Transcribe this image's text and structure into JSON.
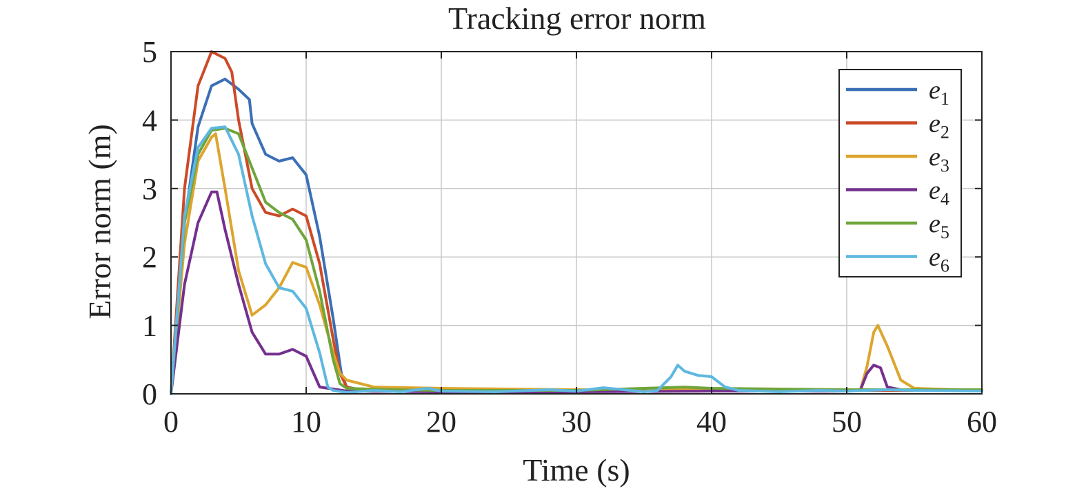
{
  "chart_data": {
    "type": "line",
    "title": "Tracking error norm",
    "xlabel": "Time (s)",
    "ylabel": "Error norm (m)",
    "xlim": [
      0,
      60
    ],
    "ylim": [
      0,
      5
    ],
    "xticks": [
      0,
      10,
      20,
      30,
      40,
      50,
      60
    ],
    "yticks": [
      0,
      1,
      2,
      3,
      4,
      5
    ],
    "grid": true,
    "legend_position": "top-right",
    "series": [
      {
        "name": "e1",
        "base": "e",
        "sub": "1",
        "color": "#3b6fb6",
        "points": [
          [
            0,
            0
          ],
          [
            1,
            2.5
          ],
          [
            2,
            3.9
          ],
          [
            3,
            4.5
          ],
          [
            4,
            4.6
          ],
          [
            5,
            4.45
          ],
          [
            5.8,
            4.3
          ],
          [
            6,
            3.95
          ],
          [
            7,
            3.5
          ],
          [
            8,
            3.4
          ],
          [
            9,
            3.45
          ],
          [
            10,
            3.2
          ],
          [
            11,
            2.3
          ],
          [
            12,
            1.1
          ],
          [
            12.6,
            0.3
          ],
          [
            13,
            0.1
          ],
          [
            14,
            0.06
          ],
          [
            20,
            0.05
          ],
          [
            30,
            0.05
          ],
          [
            40,
            0.06
          ],
          [
            50,
            0.05
          ],
          [
            60,
            0.05
          ]
        ]
      },
      {
        "name": "e2",
        "base": "e",
        "sub": "2",
        "color": "#cc4a28",
        "points": [
          [
            0,
            0
          ],
          [
            1,
            3.0
          ],
          [
            2,
            4.5
          ],
          [
            3,
            5.0
          ],
          [
            4,
            4.9
          ],
          [
            4.5,
            4.7
          ],
          [
            5,
            4.0
          ],
          [
            6,
            3.0
          ],
          [
            7,
            2.65
          ],
          [
            8,
            2.6
          ],
          [
            9,
            2.7
          ],
          [
            10,
            2.6
          ],
          [
            11,
            1.9
          ],
          [
            12,
            0.8
          ],
          [
            12.5,
            0.3
          ],
          [
            13,
            0.1
          ],
          [
            14,
            0.05
          ],
          [
            20,
            0.05
          ],
          [
            30,
            0.05
          ],
          [
            40,
            0.05
          ],
          [
            50,
            0.05
          ],
          [
            60,
            0.05
          ]
        ]
      },
      {
        "name": "e3",
        "base": "e",
        "sub": "3",
        "color": "#dda52e",
        "points": [
          [
            0,
            0
          ],
          [
            1,
            2.2
          ],
          [
            2,
            3.4
          ],
          [
            3,
            3.75
          ],
          [
            3.3,
            3.8
          ],
          [
            4,
            3.0
          ],
          [
            5,
            1.8
          ],
          [
            6,
            1.15
          ],
          [
            7,
            1.3
          ],
          [
            8,
            1.55
          ],
          [
            9,
            1.92
          ],
          [
            10,
            1.85
          ],
          [
            11,
            1.3
          ],
          [
            12,
            0.6
          ],
          [
            12.5,
            0.3
          ],
          [
            13,
            0.2
          ],
          [
            14,
            0.15
          ],
          [
            15,
            0.1
          ],
          [
            20,
            0.08
          ],
          [
            30,
            0.06
          ],
          [
            40,
            0.06
          ],
          [
            50,
            0.05
          ],
          [
            51,
            0.05
          ],
          [
            51.5,
            0.4
          ],
          [
            52,
            0.9
          ],
          [
            52.3,
            1.0
          ],
          [
            53,
            0.7
          ],
          [
            54,
            0.2
          ],
          [
            55,
            0.08
          ],
          [
            60,
            0.05
          ]
        ]
      },
      {
        "name": "e4",
        "base": "e",
        "sub": "4",
        "color": "#74308f",
        "points": [
          [
            0,
            0
          ],
          [
            1,
            1.6
          ],
          [
            2,
            2.5
          ],
          [
            3,
            2.95
          ],
          [
            3.4,
            2.95
          ],
          [
            4,
            2.4
          ],
          [
            5,
            1.6
          ],
          [
            6,
            0.9
          ],
          [
            7,
            0.58
          ],
          [
            8,
            0.58
          ],
          [
            9,
            0.65
          ],
          [
            10,
            0.55
          ],
          [
            11,
            0.1
          ],
          [
            12,
            0.07
          ],
          [
            13,
            0.04
          ],
          [
            20,
            0.03
          ],
          [
            30,
            0.03
          ],
          [
            40,
            0.04
          ],
          [
            50,
            0.04
          ],
          [
            51,
            0.05
          ],
          [
            51.5,
            0.3
          ],
          [
            52,
            0.42
          ],
          [
            52.5,
            0.38
          ],
          [
            53,
            0.1
          ],
          [
            54,
            0.06
          ],
          [
            60,
            0.05
          ]
        ]
      },
      {
        "name": "e5",
        "base": "e",
        "sub": "5",
        "color": "#6fa53a",
        "points": [
          [
            0,
            0
          ],
          [
            1,
            2.5
          ],
          [
            2,
            3.5
          ],
          [
            3,
            3.85
          ],
          [
            4,
            3.88
          ],
          [
            5,
            3.8
          ],
          [
            6,
            3.3
          ],
          [
            7,
            2.8
          ],
          [
            8,
            2.65
          ],
          [
            9,
            2.55
          ],
          [
            10,
            2.25
          ],
          [
            11,
            1.5
          ],
          [
            12,
            0.5
          ],
          [
            12.5,
            0.15
          ],
          [
            13,
            0.08
          ],
          [
            16,
            0.06
          ],
          [
            20,
            0.05
          ],
          [
            30,
            0.05
          ],
          [
            38,
            0.1
          ],
          [
            40,
            0.08
          ],
          [
            50,
            0.06
          ],
          [
            60,
            0.06
          ]
        ]
      },
      {
        "name": "e6",
        "base": "e",
        "sub": "6",
        "color": "#5eb8e0",
        "points": [
          [
            0,
            0
          ],
          [
            1,
            2.6
          ],
          [
            2,
            3.6
          ],
          [
            3,
            3.88
          ],
          [
            4,
            3.9
          ],
          [
            5,
            3.5
          ],
          [
            6,
            2.6
          ],
          [
            7,
            1.9
          ],
          [
            8,
            1.55
          ],
          [
            9,
            1.5
          ],
          [
            10,
            1.25
          ],
          [
            11,
            0.6
          ],
          [
            11.6,
            0.1
          ],
          [
            12,
            0.05
          ],
          [
            13,
            0.02
          ],
          [
            15,
            0.05
          ],
          [
            17,
            0.03
          ],
          [
            19,
            0.08
          ],
          [
            20,
            0.04
          ],
          [
            24,
            0.03
          ],
          [
            28,
            0.06
          ],
          [
            30,
            0.04
          ],
          [
            32,
            0.09
          ],
          [
            35,
            0.03
          ],
          [
            36,
            0.05
          ],
          [
            37,
            0.25
          ],
          [
            37.5,
            0.42
          ],
          [
            38,
            0.33
          ],
          [
            39,
            0.27
          ],
          [
            40,
            0.25
          ],
          [
            41,
            0.1
          ],
          [
            42,
            0.05
          ],
          [
            45,
            0.03
          ],
          [
            48,
            0.05
          ],
          [
            50,
            0.04
          ],
          [
            53,
            0.06
          ],
          [
            55,
            0.05
          ],
          [
            60,
            0.04
          ]
        ]
      }
    ]
  }
}
